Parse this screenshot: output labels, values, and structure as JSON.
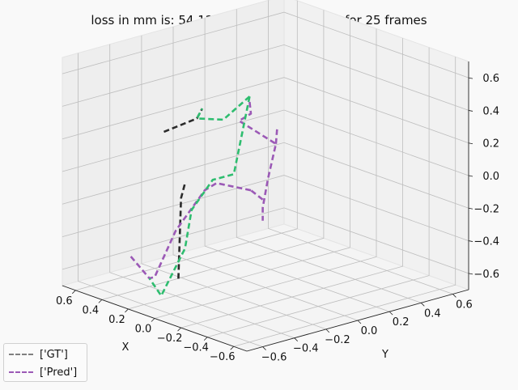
{
  "chart_data": {
    "type": "line",
    "title": "loss in mm is: 54.122 for action : walking for 25 frames",
    "xlabel": "X",
    "ylabel": "Y",
    "x_ticks": [
      "−0.6",
      "−0.4",
      "−0.2",
      "0.0",
      "0.2",
      "0.4",
      "0.6"
    ],
    "y_ticks": [
      "−0.6",
      "−0.4",
      "−0.2",
      "0.0",
      "0.2",
      "0.4",
      "0.6"
    ],
    "z_ticks": [
      "−0.6",
      "−0.4",
      "−0.2",
      "0.0",
      "0.2",
      "0.4",
      "0.6"
    ],
    "xlim": [
      -0.7,
      0.7
    ],
    "ylim": [
      -0.7,
      0.7
    ],
    "zlim": [
      -0.7,
      0.7
    ],
    "grid": true,
    "legend_position": "bottom-left",
    "legend": [
      {
        "label": "['GT']",
        "color": "#808080"
      },
      {
        "label": "['Pred']",
        "color": "#9b59b6"
      }
    ],
    "series": [
      {
        "name": "['GT']",
        "color": "#2b2b2b",
        "segments": [
          [
            [
              0.35,
              -0.35,
              0.25
            ],
            [
              0.4,
              -0.1,
              0.25
            ],
            [
              0.6,
              0.1,
              0.2
            ]
          ],
          [
            [
              0.3,
              -0.3,
              -0.65
            ],
            [
              0.28,
              -0.3,
              -0.15
            ],
            [
              0.25,
              -0.3,
              -0.05
            ]
          ]
        ]
      },
      {
        "name": "['Pred']",
        "color": "#9b59b6",
        "segments": [
          [
            [
              -0.3,
              -0.35,
              0.62
            ],
            [
              -0.25,
              -0.3,
              0.52
            ],
            [
              -0.1,
              -0.25,
              0.42
            ],
            [
              -0.5,
              -0.35,
              0.42
            ],
            [
              -0.5,
              -0.4,
              0.22
            ],
            [
              -0.4,
              -0.35,
              0.0
            ],
            [
              -0.4,
              -0.35,
              -0.08
            ]
          ],
          [
            [
              -0.5,
              -0.35,
              0.42
            ],
            [
              -0.45,
              -0.3,
              0.5
            ]
          ],
          [
            [
              -0.25,
              -0.3,
              0.05
            ],
            [
              -0.05,
              -0.35,
              0.05
            ],
            [
              0.1,
              -0.3,
              -0.05
            ],
            [
              0.2,
              -0.4,
              -0.3
            ],
            [
              0.3,
              -0.45,
              -0.6
            ],
            [
              0.4,
              -0.4,
              -0.65
            ],
            [
              0.55,
              -0.4,
              -0.55
            ]
          ],
          [
            [
              -0.4,
              -0.35,
              0.05
            ],
            [
              -0.25,
              -0.3,
              0.05
            ]
          ]
        ]
      },
      {
        "name": "",
        "color": "#2ebd6f",
        "segments": [
          [
            [
              0.0,
              -0.1,
              0.5
            ],
            [
              0.2,
              -0.1,
              0.3
            ],
            [
              0.4,
              -0.1,
              0.25
            ],
            [
              0.6,
              0.1,
              0.2
            ]
          ],
          [
            [
              0.0,
              -0.1,
              0.5
            ],
            [
              0.0,
              -0.2,
              0.05
            ],
            [
              0.1,
              -0.25,
              0.0
            ],
            [
              0.2,
              -0.3,
              -0.2
            ],
            [
              0.25,
              -0.3,
              -0.45
            ],
            [
              0.25,
              -0.45,
              -0.7
            ],
            [
              0.4,
              -0.4,
              -0.65
            ]
          ]
        ]
      }
    ]
  }
}
